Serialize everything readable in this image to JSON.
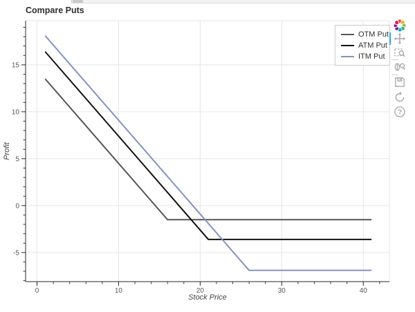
{
  "chart_data": {
    "type": "line",
    "title": "Compare Puts",
    "xlabel": "Stock Price",
    "ylabel": "Profit",
    "x_range": [
      -1.4,
      43.2
    ],
    "y_range": [
      -8.1,
      19.7
    ],
    "x_ticks": [
      0,
      10,
      20,
      30,
      40
    ],
    "y_ticks": [
      -5,
      0,
      5,
      10,
      15
    ],
    "x_minor_step": 2,
    "y_minor_step": 1,
    "grid": true,
    "legend_position": "top_right",
    "series": [
      {
        "name": "OTM Put",
        "color": "#545559",
        "points": [
          [
            1,
            13.5
          ],
          [
            16,
            -1.5
          ],
          [
            41,
            -1.5
          ]
        ]
      },
      {
        "name": "ATM Put",
        "color": "#111111",
        "points": [
          [
            1,
            16.4
          ],
          [
            21,
            -3.6
          ],
          [
            41,
            -3.6
          ]
        ]
      },
      {
        "name": "ITM Put",
        "color": "#8591C3",
        "points": [
          [
            1,
            18.1
          ],
          [
            26,
            -6.9
          ],
          [
            41,
            -6.9
          ]
        ]
      }
    ],
    "colors": {
      "grid": "#e5e5e5",
      "frame_outline": "#e3e3e3",
      "axis": "#262626",
      "tick_label": "#555555"
    }
  },
  "toolbar": {
    "logo_icon": "bokeh-logo",
    "active_color": "#26aae1",
    "items": [
      {
        "icon": "pan-icon",
        "active": true
      },
      {
        "icon": "box-zoom-icon",
        "active": false
      },
      {
        "separator": true
      },
      {
        "icon": "wheel-zoom-icon",
        "active": false
      },
      {
        "separator": true
      },
      {
        "icon": "save-icon",
        "active": false
      },
      {
        "icon": "reset-icon",
        "active": false
      },
      {
        "icon": "help-icon",
        "active": false
      }
    ]
  }
}
